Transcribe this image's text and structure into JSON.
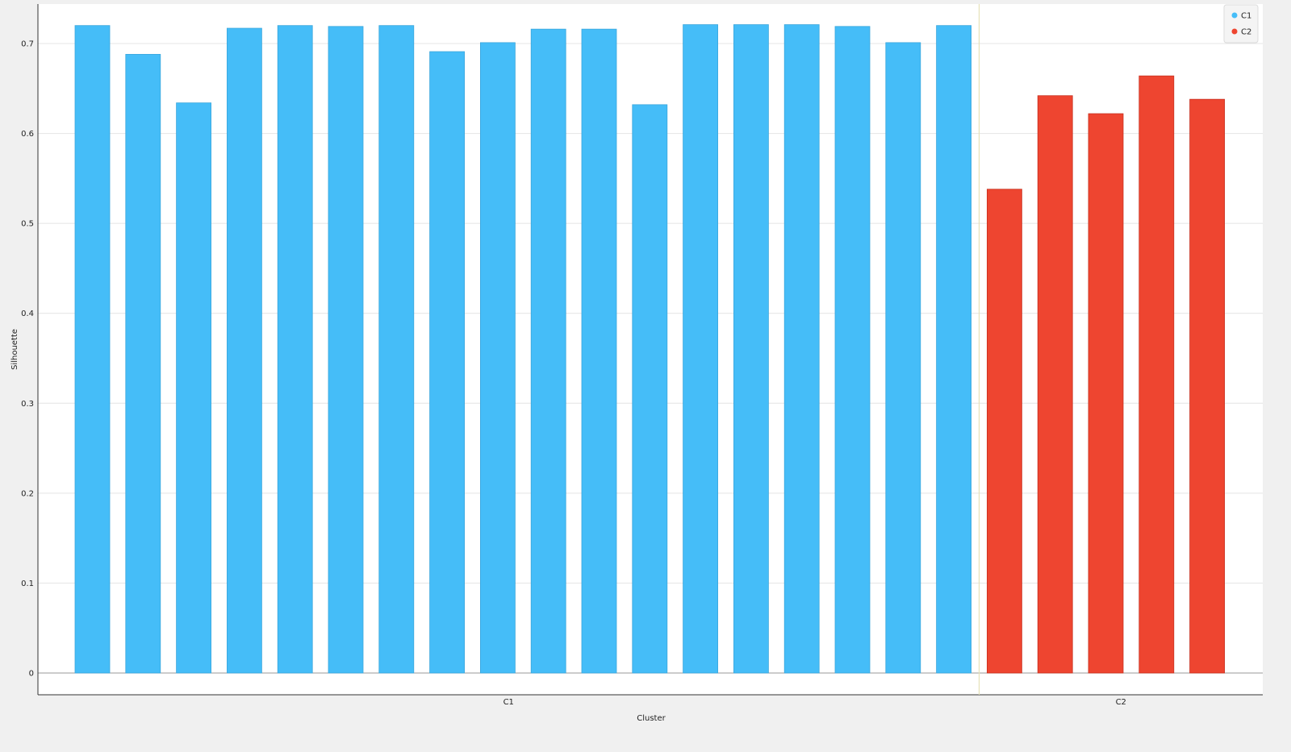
{
  "chart_data": {
    "type": "bar",
    "title": "",
    "xlabel": "Cluster",
    "ylabel": "Silhouette",
    "ylim": [
      0,
      0.74
    ],
    "yticks": [
      0,
      0.1,
      0.2,
      0.3,
      0.4,
      0.5,
      0.6,
      0.7
    ],
    "ytick_labels": [
      "0",
      "0.1",
      "0.2",
      "0.3",
      "0.4",
      "0.5",
      "0.6",
      "0.7"
    ],
    "grid": "horizontal",
    "legend_position": "top-right",
    "groups": [
      {
        "name": "C1",
        "color": "#45bdf8",
        "values": [
          0.72,
          0.688,
          0.634,
          0.717,
          0.72,
          0.719,
          0.72,
          0.691,
          0.701,
          0.716,
          0.716,
          0.632,
          0.721,
          0.721,
          0.721,
          0.719,
          0.701,
          0.72
        ]
      },
      {
        "name": "C2",
        "color": "#ee4530",
        "values": [
          0.538,
          0.642,
          0.622,
          0.664,
          0.638
        ]
      }
    ],
    "legend": [
      {
        "label": "C1",
        "color": "#45bdf8"
      },
      {
        "label": "C2",
        "color": "#ee4530"
      }
    ]
  }
}
